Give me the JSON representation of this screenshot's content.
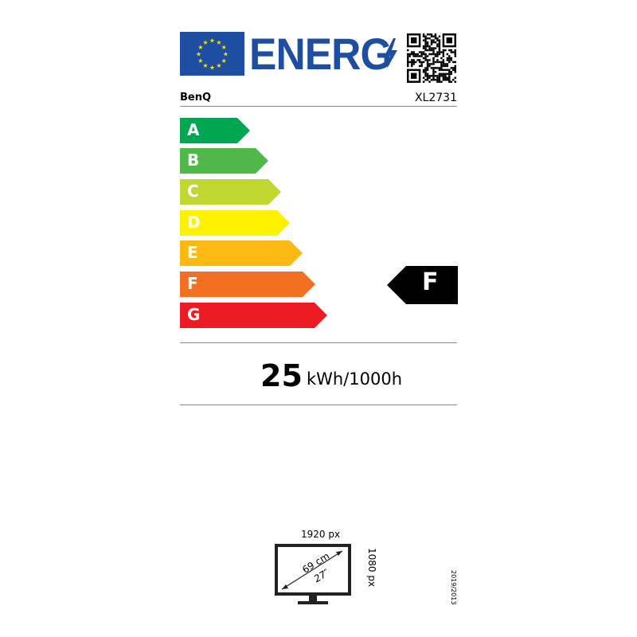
{
  "header": {
    "title": "ENERG",
    "brand": "BenQ",
    "model": "XL2731"
  },
  "scale": {
    "classes": [
      {
        "label": "A",
        "color": "#00a651"
      },
      {
        "label": "B",
        "color": "#50b848"
      },
      {
        "label": "C",
        "color": "#bfd730"
      },
      {
        "label": "D",
        "color": "#fff200"
      },
      {
        "label": "E",
        "color": "#fdb913"
      },
      {
        "label": "F",
        "color": "#f36f21"
      },
      {
        "label": "G",
        "color": "#ed1c24"
      }
    ],
    "rated_class": "F"
  },
  "consumption": {
    "value": "25",
    "unit": "kWh/1000h"
  },
  "screen": {
    "width_px": "1920 px",
    "height_px": "1080 px",
    "diagonal_cm": "69 cm",
    "diagonal_in": "27″"
  },
  "regulation": "2019/2013",
  "colors": {
    "eu_blue": "#1d4ea2",
    "star": "#ffdd00"
  }
}
